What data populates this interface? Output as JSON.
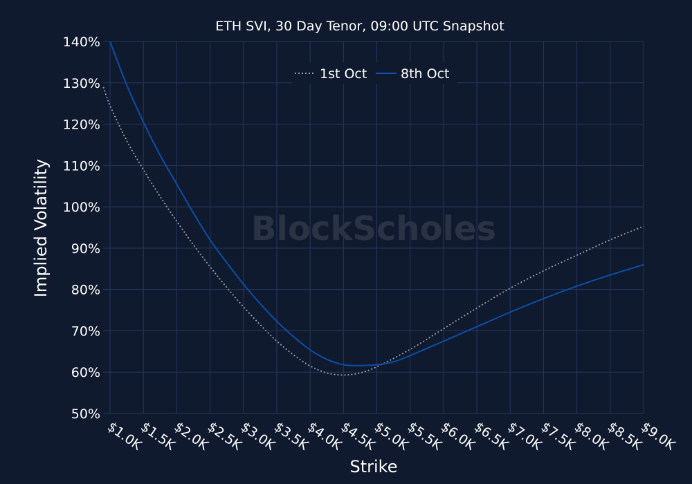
{
  "chart_data": {
    "type": "line",
    "title": "ETH SVI, 30 Day Tenor, 09:00 UTC Snapshot",
    "xlabel": "Strike",
    "ylabel": "Implied Volatility",
    "watermark": "BlockScholes",
    "xlim": [
      1000,
      9000
    ],
    "ylim": [
      50,
      140
    ],
    "grid": true,
    "legend_position": "top-center",
    "x_ticks": [
      1000,
      1500,
      2000,
      2500,
      3000,
      3500,
      4000,
      4500,
      5000,
      5500,
      6000,
      6500,
      7000,
      7500,
      8000,
      8500,
      9000
    ],
    "x_tick_labels": [
      "$1.0K",
      "$1.5K",
      "$2.0K",
      "$2.5K",
      "$3.0K",
      "$3.5K",
      "$4.0K",
      "$4.5K",
      "$5.0K",
      "$5.5K",
      "$6.0K",
      "$6.5K",
      "$7.0K",
      "$7.5K",
      "$8.0K",
      "$8.5K",
      "$9.0K"
    ],
    "y_ticks": [
      50,
      60,
      70,
      80,
      90,
      100,
      110,
      120,
      130,
      140
    ],
    "y_tick_labels": [
      "50%",
      "60%",
      "70%",
      "80%",
      "90%",
      "100%",
      "110%",
      "120%",
      "130%",
      "140%"
    ],
    "series": [
      {
        "name": "1st Oct",
        "color": "#9aa0a6",
        "style": "dotted",
        "x": [
          900,
          1000,
          1250,
          1500,
          1750,
          2000,
          2250,
          2500,
          2750,
          3000,
          3250,
          3500,
          3750,
          4000,
          4250,
          4500,
          4750,
          5000,
          5500,
          6000,
          6500,
          7000,
          7500,
          8000,
          8500,
          9000
        ],
        "y": [
          129,
          124.5,
          116,
          109,
          102.5,
          96.5,
          90.8,
          85.5,
          80.5,
          75.8,
          71.5,
          67.5,
          64.2,
          61.5,
          59.8,
          59.3,
          59.8,
          61.3,
          65.5,
          70.5,
          75.5,
          80.3,
          84.5,
          88.3,
          92,
          95.3
        ]
      },
      {
        "name": "8th Oct",
        "color": "#0a4fa8",
        "style": "solid",
        "x": [
          1000,
          1250,
          1500,
          1750,
          2000,
          2250,
          2500,
          2750,
          3000,
          3250,
          3500,
          3750,
          4000,
          4250,
          4500,
          4750,
          5000,
          5250,
          5500,
          6000,
          6500,
          7000,
          7500,
          8000,
          8500,
          9000
        ],
        "y": [
          140,
          129.5,
          120.5,
          112.5,
          105.5,
          98.5,
          92,
          86.5,
          81.3,
          76.6,
          72.3,
          68.6,
          65.4,
          63.1,
          61.8,
          61.6,
          61.8,
          62.5,
          64,
          67.5,
          71,
          74.5,
          77.8,
          80.8,
          83.5,
          86
        ]
      }
    ]
  }
}
